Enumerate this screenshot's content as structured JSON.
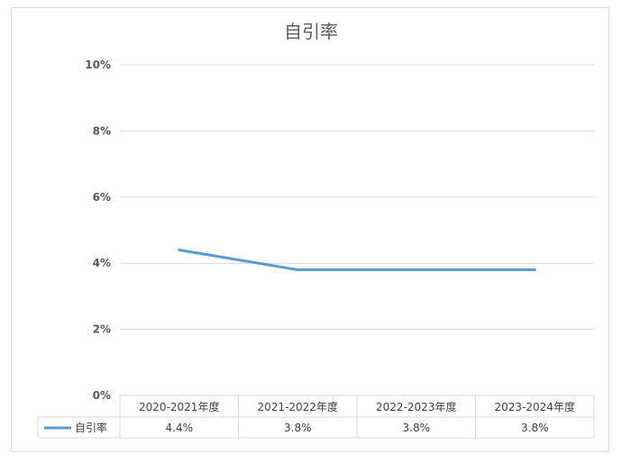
{
  "chart_data": {
    "type": "line",
    "title": "自引率",
    "categories": [
      "2020-2021年度",
      "2021-2022年度",
      "2022-2023年度",
      "2023-2024年度"
    ],
    "series": [
      {
        "name": "自引率",
        "values": [
          4.4,
          3.8,
          3.8,
          3.8
        ],
        "value_labels": [
          "4.4%",
          "3.8%",
          "3.8%",
          "3.8%"
        ],
        "color": "#5b9bd5"
      }
    ],
    "y_ticks": [
      "0%",
      "2%",
      "4%",
      "6%",
      "8%",
      "10%"
    ],
    "ylim": [
      0,
      10
    ],
    "grid": true,
    "legend": "data-table",
    "data_table": true
  }
}
